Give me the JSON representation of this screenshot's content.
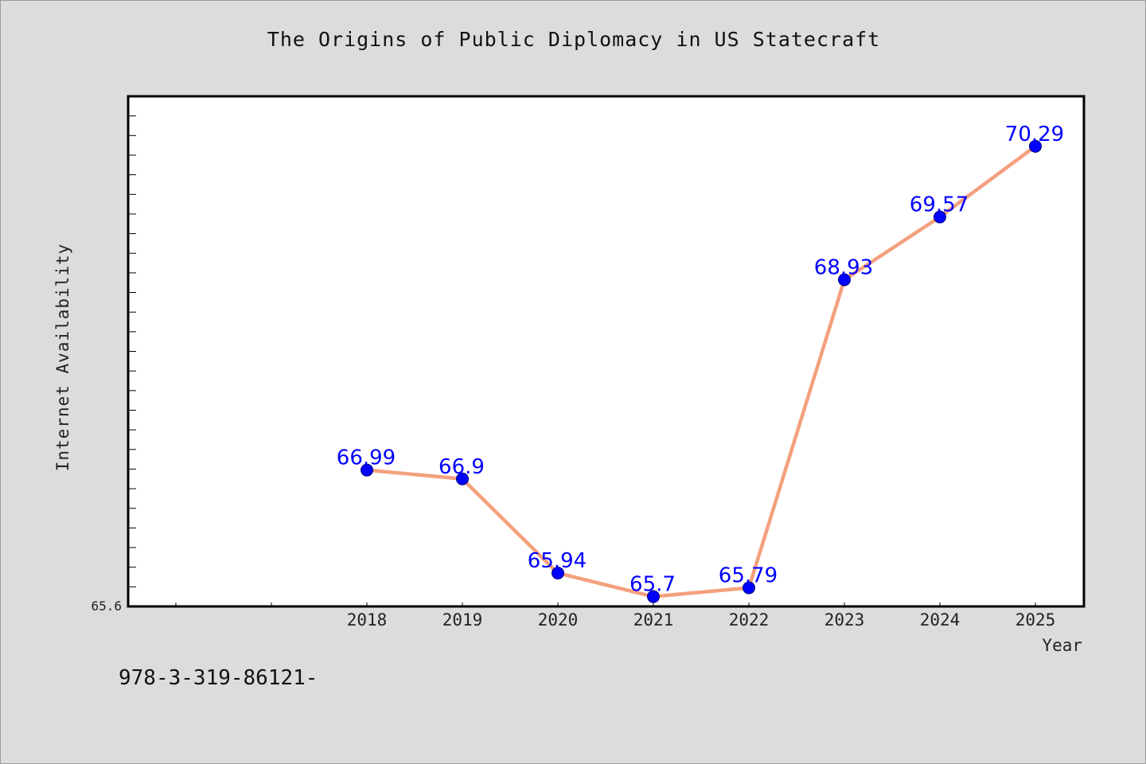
{
  "chart_data": {
    "type": "line",
    "title": "The Origins of Public Diplomacy in US Statecraft",
    "xlabel": "Year",
    "ylabel": "Internet Availability",
    "categories": [
      "2018",
      "2019",
      "2020",
      "2021",
      "2022",
      "2023",
      "2024",
      "2025"
    ],
    "series": [
      {
        "values": [
          66.99,
          66.9,
          65.94,
          65.7,
          65.79,
          68.93,
          69.57,
          70.29
        ]
      }
    ],
    "data_labels": [
      "66.99",
      "66.9",
      "65.94",
      "65.7",
      "65.79",
      "68.93",
      "69.57",
      "70.29"
    ],
    "ytick_labels": [
      "65.6"
    ],
    "ylim": [
      65.6,
      70.8
    ],
    "grid": false,
    "colors": {
      "line": "#f4a07e",
      "marker": "#0000ff",
      "label": "#0000ff"
    }
  },
  "footer": {
    "isbn_text": "978-3-319-86121-"
  }
}
